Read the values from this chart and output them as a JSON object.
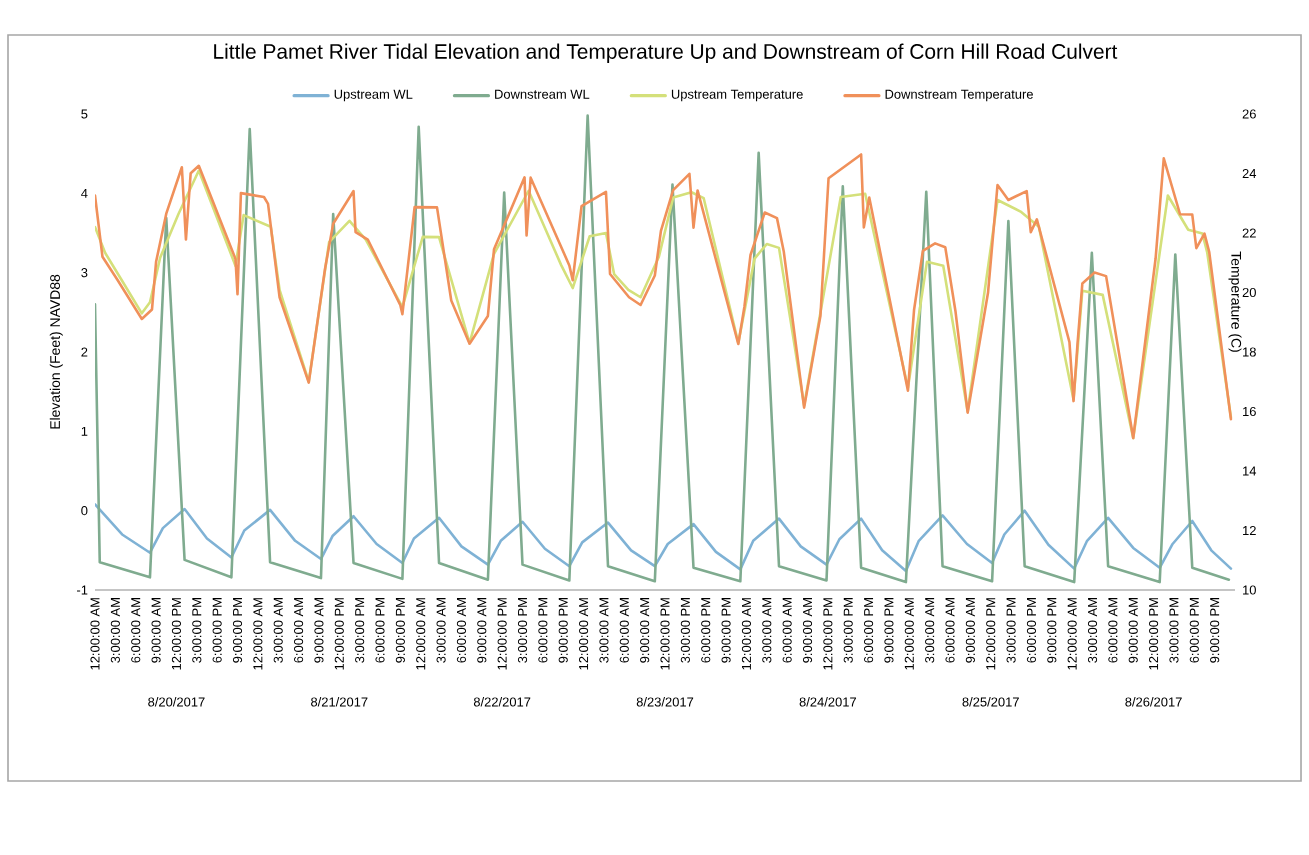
{
  "chart_data": {
    "type": "line",
    "title": "Little Pamet River Tidal Elevation and Temperature Up and Downstream of Corn Hill Road Culvert",
    "ylabel": "Elevation (Feet) NAVD88",
    "y2label": "Temperature (C)",
    "legend": "top",
    "xlim": [
      "2017-08-20T00:00",
      "2017-08-27T00:00"
    ],
    "xticks": [
      {
        "value": "2017-08-20T00:00",
        "label": "12:00:00 AM"
      },
      {
        "value": "2017-08-20T03:00",
        "label": "3:00:00 AM"
      },
      {
        "value": "2017-08-20T06:00",
        "label": "6:00:00 AM"
      },
      {
        "value": "2017-08-20T09:00",
        "label": "9:00:00 AM"
      },
      {
        "value": "2017-08-20T12:00",
        "label": "12:00:00 PM"
      },
      {
        "value": "2017-08-20T15:00",
        "label": "3:00:00 PM"
      },
      {
        "value": "2017-08-20T18:00",
        "label": "6:00:00 PM"
      },
      {
        "value": "2017-08-20T21:00",
        "label": "9:00:00 PM"
      },
      {
        "value": "2017-08-21T00:00",
        "label": "12:00:00 AM"
      },
      {
        "value": "2017-08-21T03:00",
        "label": "3:00:00 AM"
      },
      {
        "value": "2017-08-21T06:00",
        "label": "6:00:00 AM"
      },
      {
        "value": "2017-08-21T09:00",
        "label": "9:00:00 AM"
      },
      {
        "value": "2017-08-21T12:00",
        "label": "12:00:00 PM"
      },
      {
        "value": "2017-08-21T15:00",
        "label": "3:00:00 PM"
      },
      {
        "value": "2017-08-21T18:00",
        "label": "6:00:00 PM"
      },
      {
        "value": "2017-08-21T21:00",
        "label": "9:00:00 PM"
      },
      {
        "value": "2017-08-22T00:00",
        "label": "12:00:00 AM"
      },
      {
        "value": "2017-08-22T03:00",
        "label": "3:00:00 AM"
      },
      {
        "value": "2017-08-22T06:00",
        "label": "6:00:00 AM"
      },
      {
        "value": "2017-08-22T09:00",
        "label": "9:00:00 AM"
      },
      {
        "value": "2017-08-22T12:00",
        "label": "12:00:00 PM"
      },
      {
        "value": "2017-08-22T15:00",
        "label": "3:00:00 PM"
      },
      {
        "value": "2017-08-22T18:00",
        "label": "6:00:00 PM"
      },
      {
        "value": "2017-08-22T21:00",
        "label": "9:00:00 PM"
      },
      {
        "value": "2017-08-23T00:00",
        "label": "12:00:00 AM"
      },
      {
        "value": "2017-08-23T03:00",
        "label": "3:00:00 AM"
      },
      {
        "value": "2017-08-23T06:00",
        "label": "6:00:00 AM"
      },
      {
        "value": "2017-08-23T09:00",
        "label": "9:00:00 AM"
      },
      {
        "value": "2017-08-23T12:00",
        "label": "12:00:00 PM"
      },
      {
        "value": "2017-08-23T15:00",
        "label": "3:00:00 PM"
      },
      {
        "value": "2017-08-23T18:00",
        "label": "6:00:00 PM"
      },
      {
        "value": "2017-08-23T21:00",
        "label": "9:00:00 PM"
      },
      {
        "value": "2017-08-24T00:00",
        "label": "12:00:00 AM"
      },
      {
        "value": "2017-08-24T03:00",
        "label": "3:00:00 AM"
      },
      {
        "value": "2017-08-24T06:00",
        "label": "6:00:00 AM"
      },
      {
        "value": "2017-08-24T09:00",
        "label": "9:00:00 AM"
      },
      {
        "value": "2017-08-24T12:00",
        "label": "12:00:00 PM"
      },
      {
        "value": "2017-08-24T15:00",
        "label": "3:00:00 PM"
      },
      {
        "value": "2017-08-24T18:00",
        "label": "6:00:00 PM"
      },
      {
        "value": "2017-08-24T21:00",
        "label": "9:00:00 PM"
      },
      {
        "value": "2017-08-25T00:00",
        "label": "12:00:00 AM"
      },
      {
        "value": "2017-08-25T03:00",
        "label": "3:00:00 AM"
      },
      {
        "value": "2017-08-25T06:00",
        "label": "6:00:00 AM"
      },
      {
        "value": "2017-08-25T09:00",
        "label": "9:00:00 AM"
      },
      {
        "value": "2017-08-25T12:00",
        "label": "12:00:00 PM"
      },
      {
        "value": "2017-08-25T15:00",
        "label": "3:00:00 PM"
      },
      {
        "value": "2017-08-25T18:00",
        "label": "6:00:00 PM"
      },
      {
        "value": "2017-08-25T21:00",
        "label": "9:00:00 PM"
      },
      {
        "value": "2017-08-26T00:00",
        "label": "12:00:00 AM"
      },
      {
        "value": "2017-08-26T03:00",
        "label": "3:00:00 AM"
      },
      {
        "value": "2017-08-26T06:00",
        "label": "6:00:00 AM"
      },
      {
        "value": "2017-08-26T09:00",
        "label": "9:00:00 AM"
      },
      {
        "value": "2017-08-26T12:00",
        "label": "12:00:00 PM"
      },
      {
        "value": "2017-08-26T15:00",
        "label": "3:00:00 PM"
      },
      {
        "value": "2017-08-26T18:00",
        "label": "6:00:00 PM"
      },
      {
        "value": "2017-08-26T21:00",
        "label": "9:00:00 PM"
      }
    ],
    "x2lim": [
      "2017-08-20T00:00",
      "2017-08-27T00:00"
    ],
    "x2ticks": [
      {
        "value": "2017-08-20T12:00",
        "label": "8/20/2017"
      },
      {
        "value": "2017-08-21T12:00",
        "label": "8/21/2017"
      },
      {
        "value": "2017-08-22T12:00",
        "label": "8/22/2017"
      },
      {
        "value": "2017-08-23T12:00",
        "label": "8/23/2017"
      },
      {
        "value": "2017-08-24T12:00",
        "label": "8/24/2017"
      },
      {
        "value": "2017-08-25T12:00",
        "label": "8/25/2017"
      },
      {
        "value": "2017-08-26T12:00",
        "label": "8/26/2017"
      }
    ],
    "ylim": [
      -1,
      5
    ],
    "yticks": [
      -1,
      0,
      1,
      2,
      3,
      4,
      5
    ],
    "y2lim": [
      10,
      26
    ],
    "y2ticks": [
      10,
      12,
      14,
      16,
      18,
      20,
      22,
      24,
      26
    ],
    "series": [
      {
        "name": "Upstream WL",
        "color": "#7fb2d5",
        "x": [
          "2017-08-20T00:00",
          "2017-08-20T04:00",
          "2017-08-20T08:06",
          "2017-08-20T10:00",
          "2017-08-20T13:12",
          "2017-08-20T16:30",
          "2017-08-20T20:06",
          "2017-08-20T22:00",
          "2017-08-21T01:48",
          "2017-08-21T05:30",
          "2017-08-21T09:18",
          "2017-08-21T11:00",
          "2017-08-21T14:06",
          "2017-08-21T17:30",
          "2017-08-21T21:18",
          "2017-08-21T23:00",
          "2017-08-22T02:42",
          "2017-08-22T06:00",
          "2017-08-22T09:54",
          "2017-08-22T11:48",
          "2017-08-22T15:00",
          "2017-08-22T18:18",
          "2017-08-22T21:54",
          "2017-08-22T23:48",
          "2017-08-23T03:36",
          "2017-08-23T07:00",
          "2017-08-23T10:30",
          "2017-08-23T12:24",
          "2017-08-23T16:12",
          "2017-08-23T19:30",
          "2017-08-23T23:06",
          "2017-08-24T01:00",
          "2017-08-24T04:48",
          "2017-08-24T08:00",
          "2017-08-24T11:48",
          "2017-08-24T13:42",
          "2017-08-24T16:54",
          "2017-08-24T20:00",
          "2017-08-24T23:30",
          "2017-08-25T01:24",
          "2017-08-25T04:54",
          "2017-08-25T08:30",
          "2017-08-25T12:12",
          "2017-08-25T14:00",
          "2017-08-25T17:00",
          "2017-08-25T20:30",
          "2017-08-26T00:18",
          "2017-08-26T02:12",
          "2017-08-26T05:18",
          "2017-08-26T09:00",
          "2017-08-26T12:54",
          "2017-08-26T14:48",
          "2017-08-26T17:42",
          "2017-08-26T20:30",
          "2017-08-26T23:24"
        ],
        "values": [
          0.08,
          -0.3,
          -0.53,
          -0.22,
          0.02,
          -0.35,
          -0.59,
          -0.25,
          0.01,
          -0.38,
          -0.61,
          -0.32,
          -0.07,
          -0.42,
          -0.66,
          -0.35,
          -0.09,
          -0.45,
          -0.68,
          -0.38,
          -0.14,
          -0.48,
          -0.7,
          -0.4,
          -0.15,
          -0.5,
          -0.7,
          -0.42,
          -0.17,
          -0.52,
          -0.74,
          -0.38,
          -0.1,
          -0.45,
          -0.68,
          -0.36,
          -0.1,
          -0.5,
          -0.76,
          -0.38,
          -0.06,
          -0.42,
          -0.66,
          -0.3,
          0.0,
          -0.43,
          -0.73,
          -0.38,
          -0.09,
          -0.47,
          -0.72,
          -0.42,
          -0.13,
          -0.5,
          -0.73
        ]
      },
      {
        "name": "Downstream WL",
        "color": "#7fab8f",
        "x": [
          "2017-08-20T00:00",
          "2017-08-20T00:42",
          "2017-08-20T08:06",
          "2017-08-20T10:30",
          "2017-08-20T13:12",
          "2017-08-20T20:06",
          "2017-08-20T22:48",
          "2017-08-21T01:48",
          "2017-08-21T09:18",
          "2017-08-21T11:06",
          "2017-08-21T14:06",
          "2017-08-21T21:18",
          "2017-08-21T23:42",
          "2017-08-22T02:42",
          "2017-08-22T09:54",
          "2017-08-22T12:18",
          "2017-08-22T15:00",
          "2017-08-22T21:54",
          "2017-08-23T00:36",
          "2017-08-23T03:36",
          "2017-08-23T10:30",
          "2017-08-23T13:06",
          "2017-08-23T16:12",
          "2017-08-23T23:06",
          "2017-08-24T01:48",
          "2017-08-24T04:48",
          "2017-08-24T11:48",
          "2017-08-24T14:12",
          "2017-08-24T16:54",
          "2017-08-24T23:30",
          "2017-08-25T02:30",
          "2017-08-25T04:54",
          "2017-08-25T12:12",
          "2017-08-25T14:36",
          "2017-08-25T17:00",
          "2017-08-26T00:18",
          "2017-08-26T02:54",
          "2017-08-26T05:18",
          "2017-08-26T12:54",
          "2017-08-26T15:12",
          "2017-08-26T17:42",
          "2017-08-26T23:06"
        ],
        "values": [
          2.6,
          -0.65,
          -0.84,
          3.69,
          -0.62,
          -0.84,
          4.81,
          -0.65,
          -0.85,
          3.74,
          -0.66,
          -0.86,
          4.84,
          -0.66,
          -0.87,
          4.01,
          -0.68,
          -0.88,
          4.98,
          -0.7,
          -0.89,
          4.11,
          -0.72,
          -0.89,
          4.51,
          -0.7,
          -0.88,
          4.09,
          -0.72,
          -0.9,
          4.02,
          -0.7,
          -0.89,
          3.65,
          -0.7,
          -0.9,
          3.25,
          -0.7,
          -0.9,
          3.23,
          -0.72,
          -0.87
        ]
      },
      {
        "name": "Upstream Temperature",
        "color": "#d4e07a",
        "axis": "y2",
        "x": [
          "2017-08-20T00:00",
          "2017-08-20T01:30",
          "2017-08-20T03:54",
          "2017-08-20T06:54",
          "2017-08-20T08:06",
          "2017-08-20T09:36",
          "2017-08-20T12:18",
          "2017-08-20T15:18",
          "2017-08-20T20:42",
          "2017-08-20T21:54",
          "2017-08-21T01:54",
          "2017-08-21T03:12",
          "2017-08-21T07:30",
          "2017-08-21T10:30",
          "2017-08-21T13:30",
          "2017-08-21T15:54",
          "2017-08-21T21:18",
          "2017-08-22T00:18",
          "2017-08-22T02:42",
          "2017-08-22T07:12",
          "2017-08-22T10:48",
          "2017-08-22T15:54",
          "2017-08-22T20:42",
          "2017-08-22T22:24",
          "2017-08-23T00:54",
          "2017-08-23T03:18",
          "2017-08-23T04:30",
          "2017-08-23T06:36",
          "2017-08-23T08:24",
          "2017-08-23T11:06",
          "2017-08-23T13:12",
          "2017-08-23T15:54",
          "2017-08-23T17:42",
          "2017-08-23T22:48",
          "2017-08-24T01:12",
          "2017-08-24T03:00",
          "2017-08-24T04:48",
          "2017-08-24T08:30",
          "2017-08-24T13:54",
          "2017-08-24T17:30",
          "2017-08-24T23:48",
          "2017-08-25T02:36",
          "2017-08-25T05:00",
          "2017-08-25T08:36",
          "2017-08-25T13:00",
          "2017-08-25T16:24",
          "2017-08-25T19:06",
          "2017-08-26T00:12",
          "2017-08-26T01:30",
          "2017-08-26T04:30",
          "2017-08-26T09:00",
          "2017-08-26T14:06",
          "2017-08-26T17:06",
          "2017-08-26T19:12",
          "2017-08-26T19:54",
          "2017-08-26T23:24"
        ],
        "values": [
          22.2,
          21.33,
          20.43,
          19.3,
          19.67,
          21.17,
          22.64,
          24.1,
          20.9,
          22.6,
          22.21,
          20.09,
          17.0,
          21.69,
          22.41,
          21.78,
          19.51,
          21.87,
          21.86,
          18.3,
          21.3,
          23.42,
          20.92,
          20.15,
          21.89,
          22.0,
          20.62,
          20.09,
          19.84,
          21.2,
          23.19,
          23.37,
          23.17,
          18.3,
          21.14,
          21.63,
          21.5,
          16.2,
          23.21,
          23.32,
          16.8,
          21.03,
          20.9,
          16.0,
          23.11,
          22.72,
          22.21,
          16.4,
          20.06,
          19.92,
          15.1,
          23.26,
          22.11,
          21.98,
          21.35,
          15.8
        ]
      },
      {
        "name": "Downstream Temperature",
        "color": "#f0905a",
        "axis": "y2",
        "x": [
          "2017-08-20T00:00",
          "2017-08-20T01:06",
          "2017-08-20T03:18",
          "2017-08-20T06:54",
          "2017-08-20T08:24",
          "2017-08-20T09:00",
          "2017-08-20T10:30",
          "2017-08-20T12:48",
          "2017-08-20T13:24",
          "2017-08-20T14:06",
          "2017-08-20T15:18",
          "2017-08-20T20:42",
          "2017-08-20T21:00",
          "2017-08-20T21:30",
          "2017-08-21T00:54",
          "2017-08-21T01:30",
          "2017-08-21T03:12",
          "2017-08-21T07:30",
          "2017-08-21T09:54",
          "2017-08-21T11:06",
          "2017-08-21T14:06",
          "2017-08-21T14:24",
          "2017-08-21T16:12",
          "2017-08-21T21:00",
          "2017-08-21T21:18",
          "2017-08-21T23:06",
          "2017-08-22T02:24",
          "2017-08-22T04:30",
          "2017-08-22T07:12",
          "2017-08-22T09:54",
          "2017-08-22T10:48",
          "2017-08-22T15:18",
          "2017-08-22T15:36",
          "2017-08-22T16:12",
          "2017-08-22T21:54",
          "2017-08-22T22:24",
          "2017-08-22T23:42",
          "2017-08-23T03:18",
          "2017-08-23T03:54",
          "2017-08-23T06:42",
          "2017-08-23T08:24",
          "2017-08-23T10:30",
          "2017-08-23T11:24",
          "2017-08-23T13:12",
          "2017-08-23T15:36",
          "2017-08-23T16:12",
          "2017-08-23T16:48",
          "2017-08-23T22:48",
          "2017-08-23T23:42",
          "2017-08-24T00:36",
          "2017-08-24T02:42",
          "2017-08-24T04:30",
          "2017-08-24T05:30",
          "2017-08-24T08:30",
          "2017-08-24T10:54",
          "2017-08-24T12:06",
          "2017-08-24T16:54",
          "2017-08-24T17:18",
          "2017-08-24T18:06",
          "2017-08-24T23:48",
          "2017-08-25T00:42",
          "2017-08-25T02:00",
          "2017-08-25T03:48",
          "2017-08-25T05:18",
          "2017-08-25T06:48",
          "2017-08-25T08:36",
          "2017-08-25T11:36",
          "2017-08-25T13:00",
          "2017-08-25T14:36",
          "2017-08-25T17:18",
          "2017-08-25T17:54",
          "2017-08-25T18:48",
          "2017-08-25T23:36",
          "2017-08-26T00:12",
          "2017-08-26T00:48",
          "2017-08-26T01:30",
          "2017-08-26T03:18",
          "2017-08-26T05:00",
          "2017-08-26T09:00",
          "2017-08-26T12:18",
          "2017-08-26T13:30",
          "2017-08-26T15:54",
          "2017-08-26T17:42",
          "2017-08-26T18:18",
          "2017-08-26T19:30",
          "2017-08-26T20:12",
          "2017-08-26T23:24"
        ],
        "values": [
          23.26,
          21.2,
          20.43,
          19.11,
          19.43,
          21.03,
          22.65,
          24.21,
          21.78,
          24.01,
          24.26,
          21.13,
          19.94,
          23.34,
          23.21,
          22.98,
          19.84,
          16.97,
          20.8,
          22.31,
          23.41,
          22.03,
          21.78,
          19.57,
          19.27,
          22.87,
          22.86,
          19.73,
          18.28,
          19.21,
          21.45,
          23.87,
          21.92,
          23.86,
          20.91,
          20.41,
          22.9,
          23.38,
          20.62,
          19.84,
          19.58,
          20.57,
          22.07,
          23.44,
          23.99,
          22.18,
          23.43,
          18.27,
          19.52,
          21.26,
          22.69,
          22.5,
          21.38,
          16.13,
          19.21,
          23.84,
          24.64,
          22.19,
          23.19,
          16.7,
          19.41,
          21.4,
          21.65,
          21.52,
          19.38,
          15.96,
          19.99,
          23.61,
          23.11,
          23.41,
          22.03,
          22.46,
          18.33,
          16.35,
          18.31,
          20.3,
          20.67,
          20.55,
          15.11,
          21.15,
          24.51,
          22.63,
          22.62,
          21.49,
          21.98,
          21.36,
          15.74
        ]
      }
    ]
  }
}
